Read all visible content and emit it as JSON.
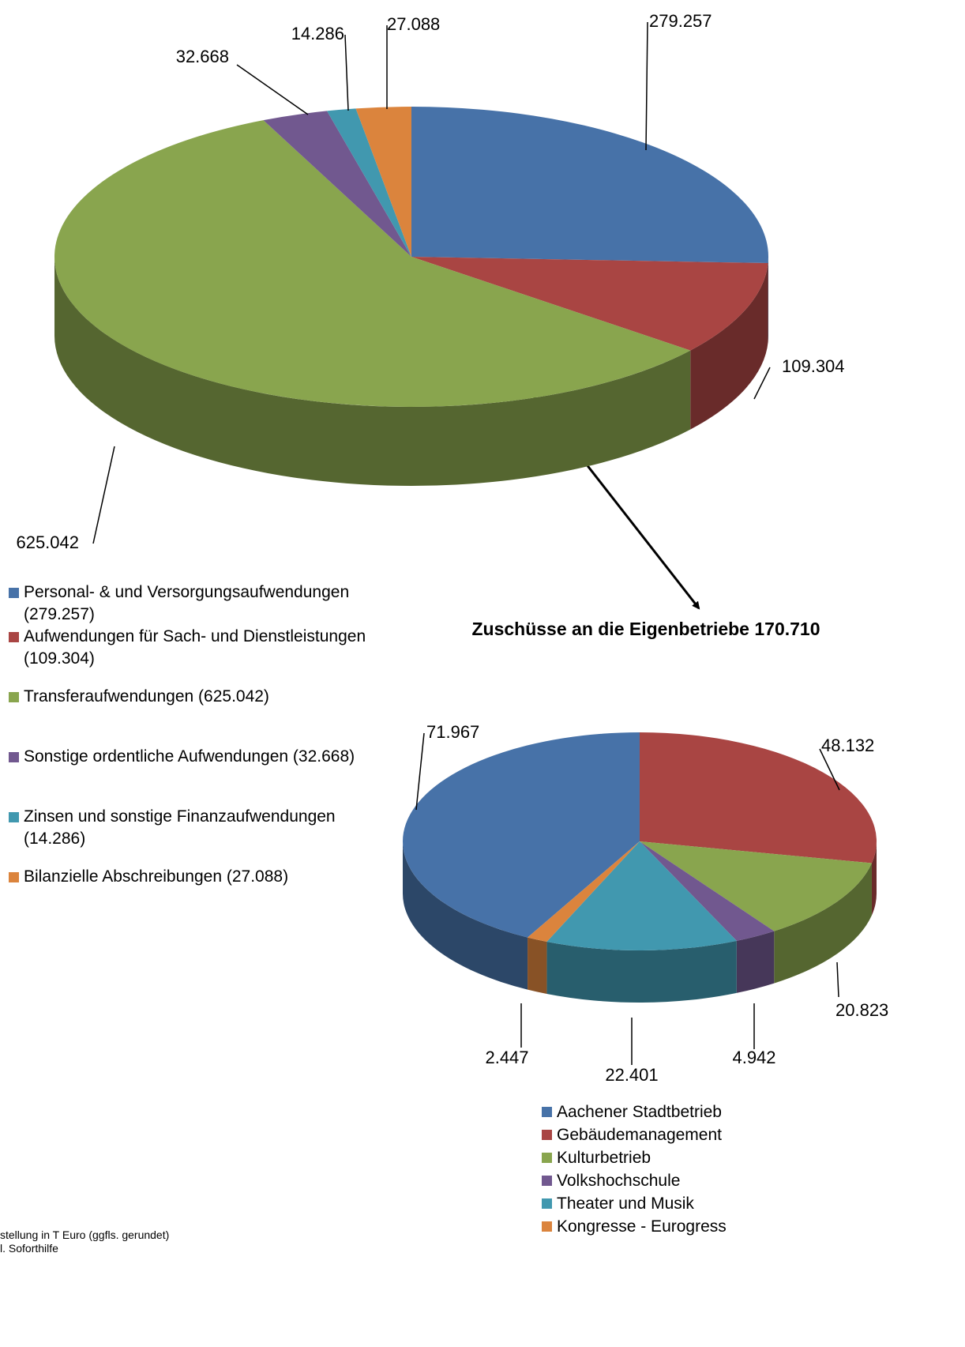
{
  "chart_data": [
    {
      "type": "pie",
      "categories": [
        "Personal- & und Versorgungsaufwendungen (279.257)",
        "Aufwendungen für Sach- und Dienstleistungen (109.304)",
        "Transferaufwendungen (625.042)",
        "Sonstige ordentliche Aufwendungen (32.668)",
        "Zinsen und sonstige Finanzaufwendungen (14.286)",
        "Bilanzielle Abschreibungen (27.088)"
      ],
      "values": [
        279.257,
        109.304,
        625.042,
        32.668,
        14.286,
        27.088
      ],
      "colors": [
        "#4772a8",
        "#a94543",
        "#89a54e",
        "#71588f",
        "#4198af",
        "#db843d"
      ],
      "legend": true
    },
    {
      "type": "pie",
      "title": "Zuschüsse an die Eigenbetriebe 170.710",
      "categories": [
        "Aachener Stadtbetrieb",
        "Gebäudemanagement",
        "Kulturbetrieb",
        "Volkshochschule",
        "Theater und Musik",
        "Kongresse - Eurogress"
      ],
      "values": [
        71.967,
        48.132,
        20.823,
        4.942,
        22.401,
        2.447
      ],
      "colors": [
        "#4772a8",
        "#a94543",
        "#89a54e",
        "#71588f",
        "#4198af",
        "#db843d"
      ],
      "legend": true
    }
  ],
  "notes": [
    "stellung in T Euro (ggfls. gerundet)",
    "l. Soforthilfe"
  ]
}
